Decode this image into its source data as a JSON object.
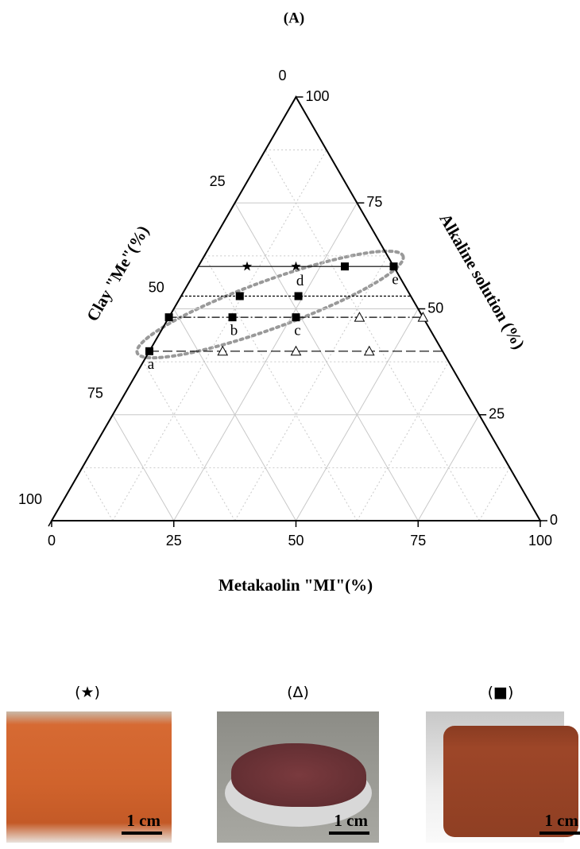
{
  "chart_data": {
    "type": "ternary",
    "title": "(A)",
    "axes": {
      "bottom": {
        "label": "Metakaolin \"MI\"(%)",
        "lim": [
          0,
          100
        ],
        "ticks": [
          0,
          25,
          50,
          75,
          100
        ]
      },
      "left": {
        "label": "Clay \"Me\"(%)",
        "lim": [
          0,
          100
        ],
        "ticks": [
          0,
          25,
          50,
          75,
          100
        ]
      },
      "right": {
        "label": "Alkaline solution (%)",
        "lim": [
          0,
          100
        ],
        "ticks": [
          0,
          25,
          50,
          75,
          100
        ]
      }
    },
    "grid": true,
    "minor_ticks": [
      12.5,
      37.5,
      62.5,
      87.5
    ],
    "composition_lines": [
      {
        "alkaline": 60,
        "style": "solid"
      },
      {
        "alkaline": 53,
        "style": "dotted"
      },
      {
        "alkaline": 48,
        "style": "dashdot"
      },
      {
        "alkaline": 40,
        "style": "dashed"
      }
    ],
    "series": [
      {
        "marker": "star",
        "color": "#000000",
        "mi": [
          10,
          20
        ],
        "alkaline": [
          60,
          60
        ]
      },
      {
        "marker": "triangle",
        "color": "#000000",
        "mi": [
          15,
          30,
          45,
          39,
          52
        ],
        "alkaline": [
          40,
          40,
          40,
          48,
          48
        ]
      },
      {
        "marker": "square",
        "color": "#000000",
        "mi": [
          0,
          0,
          13,
          26,
          12,
          24,
          30,
          40
        ],
        "alkaline": [
          40,
          48,
          48,
          48,
          53,
          53,
          60,
          60
        ],
        "labels": [
          "a",
          null,
          "b",
          "c",
          null,
          "d",
          null,
          "e"
        ]
      }
    ]
  },
  "panels": [
    {
      "label": "(★)",
      "scale": "1 cm"
    },
    {
      "label": "(Δ)",
      "scale": "1 cm"
    },
    {
      "label": "(■)",
      "scale": "1 cm"
    }
  ]
}
